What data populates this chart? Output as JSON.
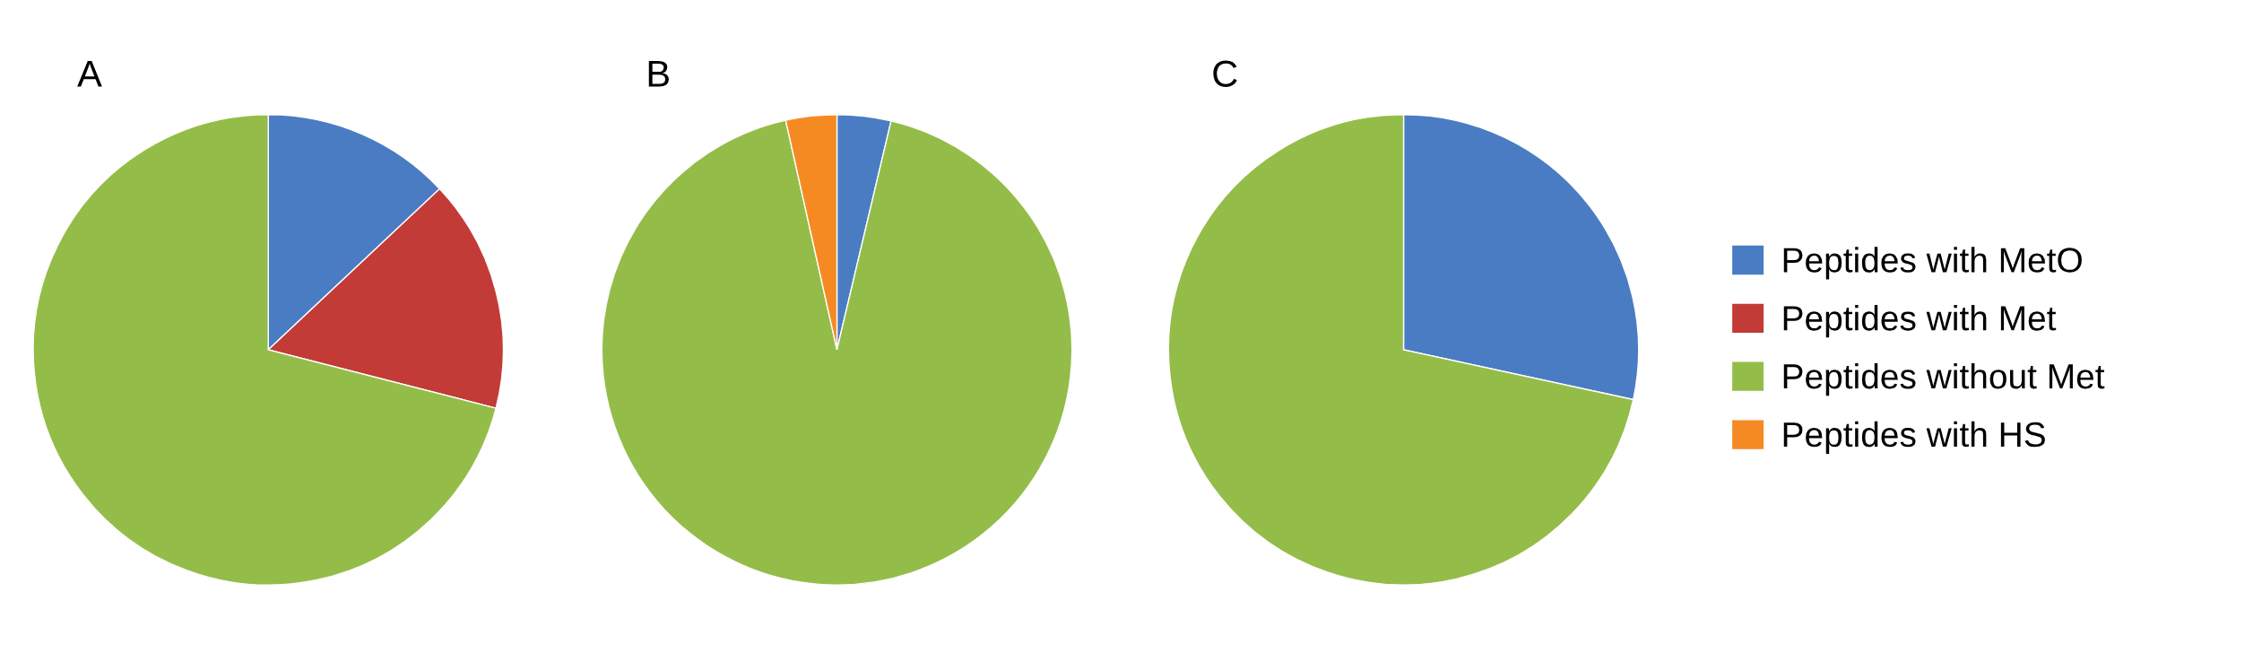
{
  "chart_data": [
    {
      "type": "pie",
      "title": "A",
      "values": [
        13,
        16,
        71,
        null
      ],
      "colors": [
        "#4a7cc4",
        "#c23b36",
        "#93bd48",
        "#f68a22"
      ]
    },
    {
      "type": "pie",
      "title": "B",
      "values": [
        3.7,
        null,
        92.8,
        3.5
      ],
      "colors": [
        "#4a7cc4",
        "#c23b36",
        "#93bd48",
        "#f68a22"
      ]
    },
    {
      "type": "pie",
      "title": "C",
      "categories": [
        "Peptides with MetO",
        "Peptides with Met",
        "Peptides without Met",
        "Peptides with HS"
      ],
      "values": [
        28.4,
        null,
        71.6,
        null
      ],
      "colors": [
        "#4a7cc4",
        "#c23b36",
        "#93bd48",
        "#f68a22"
      ],
      "legend": "right"
    }
  ]
}
